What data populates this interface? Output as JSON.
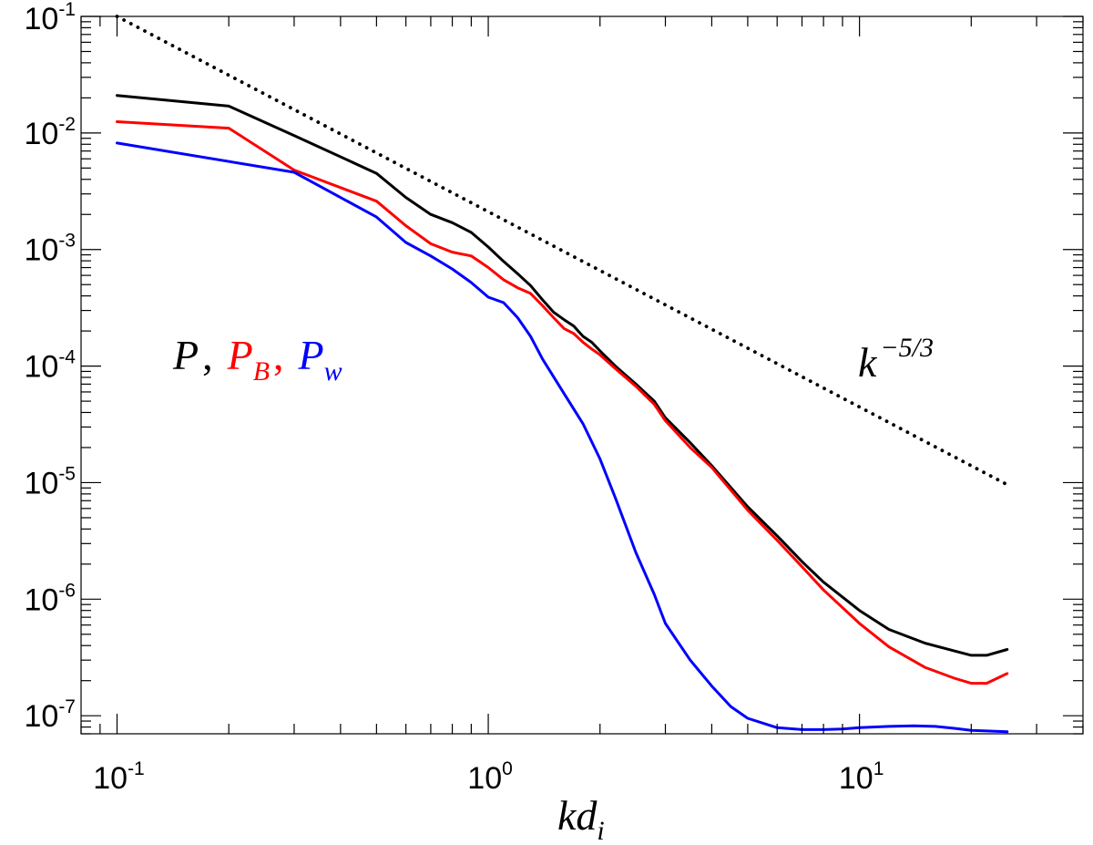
{
  "chart_data": {
    "type": "line",
    "title": "",
    "xlabel": {
      "base": "kd",
      "sub": "i"
    },
    "ylabel": "",
    "xscale": "log",
    "yscale": "log",
    "xlim": [
      0.08,
      40
    ],
    "ylim": [
      7e-08,
      0.1
    ],
    "grid": false,
    "x_ticks": [
      {
        "base": "10",
        "exp": "-1",
        "value": 0.1
      },
      {
        "base": "10",
        "exp": "0",
        "value": 1
      },
      {
        "base": "10",
        "exp": "1",
        "value": 10
      }
    ],
    "y_ticks": [
      {
        "base": "10",
        "exp": "-1",
        "value": 0.1
      },
      {
        "base": "10",
        "exp": "-2",
        "value": 0.01
      },
      {
        "base": "10",
        "exp": "-3",
        "value": 0.001
      },
      {
        "base": "10",
        "exp": "-4",
        "value": 0.0001
      },
      {
        "base": "10",
        "exp": "-5",
        "value": 1e-05
      },
      {
        "base": "10",
        "exp": "-6",
        "value": 1e-06
      },
      {
        "base": "10",
        "exp": "-7",
        "value": 1e-07
      }
    ],
    "legend": {
      "position": "left",
      "entries": [
        {
          "base": "P",
          "sub": "",
          "sep": ",",
          "color": "#000000"
        },
        {
          "base": "P",
          "sub": "B",
          "sep": ",",
          "color": "#ff0000"
        },
        {
          "base": "P",
          "sub": "w",
          "sep": "",
          "color": "#0000ff"
        }
      ]
    },
    "annotation": {
      "base": "k",
      "exp": "−5/3"
    },
    "series": [
      {
        "name": "P",
        "color": "#000000",
        "style": "solid",
        "x": [
          0.1,
          0.2,
          0.3,
          0.5,
          0.6,
          0.7,
          0.8,
          0.9,
          1.0,
          1.1,
          1.2,
          1.3,
          1.4,
          1.5,
          1.6,
          1.7,
          1.8,
          1.9,
          2.0,
          2.2,
          2.5,
          2.8,
          3.0,
          3.5,
          4.0,
          5.0,
          6.0,
          7.0,
          8.0,
          10.0,
          12.0,
          15.0,
          18.0,
          20.0,
          22.0,
          25.0
        ],
        "values": [
          0.021,
          0.017,
          0.0095,
          0.0045,
          0.0028,
          0.002,
          0.0017,
          0.0014,
          0.00105,
          0.00079,
          0.00062,
          0.00049,
          0.00037,
          0.00029,
          0.00025,
          0.00022,
          0.00018,
          0.00016,
          0.000135,
          0.0001,
          7e-05,
          5e-05,
          3.6e-05,
          2.2e-05,
          1.4e-05,
          6.2e-06,
          3.5e-06,
          2.1e-06,
          1.4e-06,
          8e-07,
          5.5e-07,
          4.2e-07,
          3.6e-07,
          3.3e-07,
          3.3e-07,
          3.7e-07
        ]
      },
      {
        "name": "P_B",
        "color": "#ff0000",
        "style": "solid",
        "x": [
          0.1,
          0.2,
          0.3,
          0.5,
          0.6,
          0.7,
          0.8,
          0.9,
          1.0,
          1.1,
          1.2,
          1.3,
          1.4,
          1.5,
          1.6,
          1.7,
          1.8,
          1.9,
          2.0,
          2.2,
          2.5,
          2.8,
          3.0,
          3.5,
          4.0,
          5.0,
          6.0,
          7.0,
          8.0,
          10.0,
          12.0,
          15.0,
          18.0,
          20.0,
          22.0,
          25.0
        ],
        "values": [
          0.0125,
          0.011,
          0.0048,
          0.0026,
          0.0016,
          0.00112,
          0.00095,
          0.00088,
          0.0007,
          0.00055,
          0.00047,
          0.00042,
          0.00033,
          0.00026,
          0.00021,
          0.00019,
          0.00016,
          0.00014,
          0.000125,
          9.5e-05,
          6.7e-05,
          4.7e-05,
          3.4e-05,
          2e-05,
          1.35e-05,
          5.8e-06,
          3.2e-06,
          1.9e-06,
          1.2e-06,
          6.2e-07,
          3.9e-07,
          2.6e-07,
          2.1e-07,
          1.9e-07,
          1.9e-07,
          2.3e-07
        ]
      },
      {
        "name": "P_w",
        "color": "#0000ff",
        "style": "solid",
        "x": [
          0.1,
          0.3,
          0.5,
          0.6,
          0.7,
          0.8,
          0.9,
          1.0,
          1.1,
          1.2,
          1.3,
          1.4,
          1.6,
          1.8,
          2.0,
          2.2,
          2.5,
          2.8,
          3.0,
          3.5,
          4.0,
          4.5,
          5.0,
          6.0,
          7.0,
          8.0,
          9.0,
          10.0,
          12.0,
          14.0,
          16.0,
          18.0,
          20.0,
          22.0,
          25.0
        ],
        "values": [
          0.0082,
          0.0046,
          0.0019,
          0.00115,
          0.00088,
          0.00068,
          0.00052,
          0.00039,
          0.00035,
          0.00026,
          0.00018,
          0.000115,
          5.8e-05,
          3.2e-05,
          1.6e-05,
          7.4e-06,
          2.5e-06,
          1.1e-06,
          6.2e-07,
          3e-07,
          1.8e-07,
          1.2e-07,
          9.5e-08,
          7.9e-08,
          7.6e-08,
          7.6e-08,
          7.7e-08,
          7.9e-08,
          8.1e-08,
          8.2e-08,
          8.1e-08,
          7.8e-08,
          7.5e-08,
          7.4e-08,
          7.3e-08
        ]
      },
      {
        "name": "k^-5/3",
        "color": "#000000",
        "style": "dotted",
        "x": [
          0.1,
          25.0
        ],
        "values": [
          0.1,
          9.6e-06
        ]
      }
    ]
  }
}
